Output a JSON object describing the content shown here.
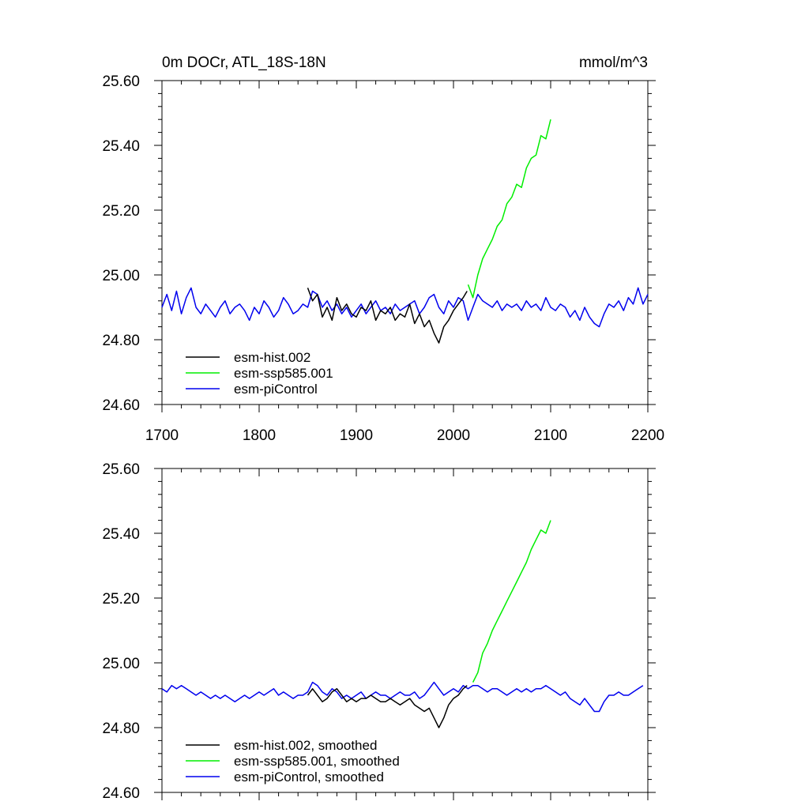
{
  "chart_data": [
    {
      "type": "line",
      "title": "0m DOCr, ATL_18S-18N",
      "units": "mmol/m^3",
      "xlim": [
        1700,
        2200
      ],
      "ylim": [
        24.6,
        25.6
      ],
      "x_ticks": [
        1700,
        1800,
        1900,
        2000,
        2100,
        2200
      ],
      "x_tick_labels": [
        "1700",
        "1800",
        "1900",
        "2000",
        "2100",
        "2200"
      ],
      "y_ticks": [
        24.6,
        24.8,
        25.0,
        25.2,
        25.4,
        25.6
      ],
      "y_tick_labels": [
        "24.60",
        "24.80",
        "25.00",
        "25.20",
        "25.40",
        "25.60"
      ],
      "legend_position": "bottom-left",
      "series": [
        {
          "name": "esm-hist.002",
          "color": "#000000",
          "x": [
            1850,
            1855,
            1860,
            1865,
            1870,
            1875,
            1880,
            1885,
            1890,
            1895,
            1900,
            1905,
            1910,
            1915,
            1920,
            1925,
            1930,
            1935,
            1940,
            1945,
            1950,
            1955,
            1960,
            1965,
            1970,
            1975,
            1980,
            1985,
            1990,
            1995,
            2000,
            2005,
            2010,
            2014
          ],
          "y": [
            24.96,
            24.92,
            24.94,
            24.87,
            24.9,
            24.86,
            24.93,
            24.89,
            24.91,
            24.88,
            24.87,
            24.9,
            24.89,
            24.92,
            24.86,
            24.89,
            24.88,
            24.9,
            24.86,
            24.88,
            24.87,
            24.91,
            24.85,
            24.88,
            24.84,
            24.86,
            24.82,
            24.79,
            24.84,
            24.86,
            24.89,
            24.91,
            24.93,
            24.95
          ]
        },
        {
          "name": "esm-ssp585.001",
          "color": "#00ee00",
          "x": [
            2015,
            2020,
            2025,
            2030,
            2035,
            2040,
            2045,
            2050,
            2055,
            2060,
            2065,
            2070,
            2075,
            2080,
            2085,
            2090,
            2095,
            2100
          ],
          "y": [
            24.97,
            24.93,
            25.0,
            25.05,
            25.08,
            25.11,
            25.15,
            25.17,
            25.22,
            25.24,
            25.28,
            25.27,
            25.33,
            25.36,
            25.37,
            25.43,
            25.42,
            25.48
          ]
        },
        {
          "name": "esm-piControl",
          "color": "#0000ee",
          "x": [
            1700,
            1705,
            1710,
            1715,
            1720,
            1725,
            1730,
            1735,
            1740,
            1745,
            1750,
            1755,
            1760,
            1765,
            1770,
            1775,
            1780,
            1785,
            1790,
            1795,
            1800,
            1805,
            1810,
            1815,
            1820,
            1825,
            1830,
            1835,
            1840,
            1845,
            1850,
            1855,
            1860,
            1865,
            1870,
            1875,
            1880,
            1885,
            1890,
            1895,
            1900,
            1905,
            1910,
            1915,
            1920,
            1925,
            1930,
            1935,
            1940,
            1945,
            1950,
            1955,
            1960,
            1965,
            1970,
            1975,
            1980,
            1985,
            1990,
            1995,
            2000,
            2005,
            2010,
            2015,
            2020,
            2025,
            2030,
            2035,
            2040,
            2045,
            2050,
            2055,
            2060,
            2065,
            2070,
            2075,
            2080,
            2085,
            2090,
            2095,
            2100,
            2105,
            2110,
            2115,
            2120,
            2125,
            2130,
            2135,
            2140,
            2145,
            2150,
            2155,
            2160,
            2165,
            2170,
            2175,
            2180,
            2185,
            2190,
            2195,
            2200
          ],
          "y": [
            24.9,
            24.94,
            24.89,
            24.95,
            24.88,
            24.93,
            24.96,
            24.9,
            24.88,
            24.91,
            24.89,
            24.87,
            24.9,
            24.92,
            24.88,
            24.9,
            24.91,
            24.89,
            24.86,
            24.9,
            24.88,
            24.92,
            24.9,
            24.87,
            24.89,
            24.93,
            24.91,
            24.88,
            24.89,
            24.91,
            24.9,
            24.95,
            24.94,
            24.9,
            24.92,
            24.89,
            24.91,
            24.88,
            24.9,
            24.87,
            24.89,
            24.91,
            24.88,
            24.9,
            24.92,
            24.89,
            24.9,
            24.88,
            24.91,
            24.89,
            24.9,
            24.91,
            24.92,
            24.88,
            24.9,
            24.93,
            24.94,
            24.9,
            24.88,
            24.92,
            24.9,
            24.93,
            24.92,
            24.86,
            24.9,
            24.94,
            24.92,
            24.91,
            24.9,
            24.92,
            24.89,
            24.91,
            24.9,
            24.91,
            24.89,
            24.92,
            24.9,
            24.91,
            24.89,
            24.93,
            24.9,
            24.89,
            24.91,
            24.9,
            24.87,
            24.89,
            24.86,
            24.9,
            24.87,
            24.85,
            24.84,
            24.88,
            24.91,
            24.9,
            24.92,
            24.89,
            24.93,
            24.91,
            24.96,
            24.91,
            24.94
          ]
        }
      ]
    },
    {
      "type": "line",
      "title": "",
      "units": "",
      "xlim": [
        1700,
        2200
      ],
      "ylim": [
        24.6,
        25.6
      ],
      "x_ticks": [
        1700,
        1800,
        1900,
        2000,
        2100,
        2200
      ],
      "x_tick_labels": [],
      "y_ticks": [
        24.6,
        24.8,
        25.0,
        25.2,
        25.4,
        25.6
      ],
      "y_tick_labels": [
        "24.60",
        "24.80",
        "25.00",
        "25.20",
        "25.40",
        "25.60"
      ],
      "legend_position": "bottom-left",
      "series": [
        {
          "name": "esm-hist.002, smoothed",
          "color": "#000000",
          "x": [
            1850,
            1855,
            1860,
            1865,
            1870,
            1875,
            1880,
            1885,
            1890,
            1895,
            1900,
            1905,
            1910,
            1915,
            1920,
            1925,
            1930,
            1935,
            1940,
            1945,
            1950,
            1955,
            1960,
            1965,
            1970,
            1975,
            1980,
            1985,
            1990,
            1995,
            2000,
            2005,
            2010,
            2014
          ],
          "y": [
            24.9,
            24.92,
            24.9,
            24.88,
            24.89,
            24.91,
            24.92,
            24.9,
            24.88,
            24.89,
            24.88,
            24.89,
            24.89,
            24.9,
            24.89,
            24.88,
            24.88,
            24.89,
            24.88,
            24.87,
            24.88,
            24.89,
            24.87,
            24.86,
            24.85,
            24.86,
            24.83,
            24.8,
            24.83,
            24.87,
            24.89,
            24.9,
            24.92,
            24.93
          ]
        },
        {
          "name": "esm-ssp585.001, smoothed",
          "color": "#00ee00",
          "x": [
            2020,
            2025,
            2030,
            2035,
            2040,
            2045,
            2050,
            2055,
            2060,
            2065,
            2070,
            2075,
            2080,
            2085,
            2090,
            2095,
            2100
          ],
          "y": [
            24.94,
            24.97,
            25.03,
            25.06,
            25.1,
            25.13,
            25.16,
            25.19,
            25.22,
            25.25,
            25.28,
            25.31,
            25.35,
            25.38,
            25.41,
            25.4,
            25.44
          ]
        },
        {
          "name": "esm-piControl, smoothed",
          "color": "#0000ee",
          "x": [
            1700,
            1705,
            1710,
            1715,
            1720,
            1725,
            1730,
            1735,
            1740,
            1745,
            1750,
            1755,
            1760,
            1765,
            1770,
            1775,
            1780,
            1785,
            1790,
            1795,
            1800,
            1805,
            1810,
            1815,
            1820,
            1825,
            1830,
            1835,
            1840,
            1845,
            1850,
            1855,
            1860,
            1865,
            1870,
            1875,
            1880,
            1885,
            1890,
            1895,
            1900,
            1905,
            1910,
            1915,
            1920,
            1925,
            1930,
            1935,
            1940,
            1945,
            1950,
            1955,
            1960,
            1965,
            1970,
            1975,
            1980,
            1985,
            1990,
            1995,
            2000,
            2005,
            2010,
            2015,
            2020,
            2025,
            2030,
            2035,
            2040,
            2045,
            2050,
            2055,
            2060,
            2065,
            2070,
            2075,
            2080,
            2085,
            2090,
            2095,
            2100,
            2105,
            2110,
            2115,
            2120,
            2125,
            2130,
            2135,
            2140,
            2145,
            2150,
            2155,
            2160,
            2165,
            2170,
            2175,
            2180,
            2185,
            2190,
            2195
          ],
          "y": [
            24.92,
            24.91,
            24.93,
            24.92,
            24.93,
            24.92,
            24.91,
            24.9,
            24.91,
            24.9,
            24.89,
            24.9,
            24.89,
            24.9,
            24.89,
            24.88,
            24.89,
            24.9,
            24.89,
            24.9,
            24.91,
            24.9,
            24.91,
            24.92,
            24.9,
            24.91,
            24.9,
            24.89,
            24.9,
            24.9,
            24.91,
            24.94,
            24.93,
            24.91,
            24.9,
            24.92,
            24.91,
            24.89,
            24.9,
            24.89,
            24.9,
            24.91,
            24.89,
            24.9,
            24.91,
            24.9,
            24.9,
            24.89,
            24.9,
            24.91,
            24.9,
            24.9,
            24.91,
            24.89,
            24.9,
            24.92,
            24.94,
            24.92,
            24.9,
            24.91,
            24.92,
            24.91,
            24.93,
            24.92,
            24.93,
            24.93,
            24.92,
            24.91,
            24.92,
            24.92,
            24.91,
            24.9,
            24.91,
            24.92,
            24.91,
            24.92,
            24.91,
            24.92,
            24.92,
            24.93,
            24.92,
            24.91,
            24.9,
            24.91,
            24.89,
            24.88,
            24.87,
            24.89,
            24.87,
            24.85,
            24.85,
            24.88,
            24.9,
            24.9,
            24.91,
            24.9,
            24.9,
            24.91,
            24.92,
            24.93
          ]
        }
      ]
    }
  ]
}
